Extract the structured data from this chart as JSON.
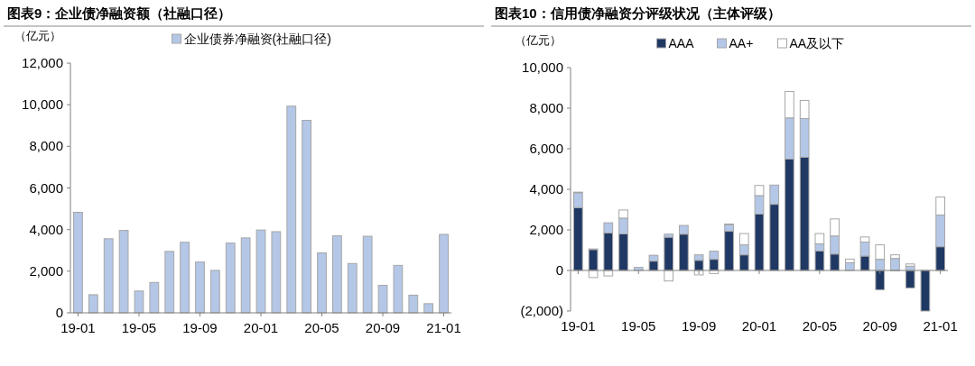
{
  "chart_data": [
    {
      "type": "bar",
      "title": "图表9：企业债净融资额（社融口径）",
      "ylabel": "（亿元）",
      "legend": "top",
      "categories": [
        "19-01",
        null,
        null,
        null,
        "19-05",
        null,
        null,
        null,
        "19-09",
        null,
        null,
        null,
        "20-01",
        null,
        null,
        null,
        "20-05",
        null,
        null,
        null,
        "20-09",
        null,
        null,
        null,
        "21-01"
      ],
      "series": [
        {
          "name": "企业债券净融资(社融口径)",
          "color": "#b4c7e7",
          "values": [
            4830,
            870,
            3560,
            3960,
            1050,
            1460,
            2950,
            3390,
            2440,
            2040,
            3350,
            3600,
            3980,
            3900,
            9930,
            9250,
            2880,
            3700,
            2370,
            3680,
            1320,
            2280,
            850,
            440,
            3770
          ]
        }
      ],
      "ylim": [
        0,
        12000
      ],
      "yticks": [
        0,
        {
          "value": 2000,
          "label": "2,000"
        },
        {
          "value": 4000,
          "label": "4,000"
        },
        {
          "value": 6000,
          "label": "6,000"
        },
        {
          "value": 8000,
          "label": "8,000"
        },
        {
          "value": 10000,
          "label": "10,000"
        },
        {
          "value": 12000,
          "label": "12,000"
        }
      ]
    },
    {
      "type": "bar",
      "title": "图表10：信用债净融资分评级状况（主体评级）",
      "ylabel": "（亿元）",
      "legend": "top",
      "stacked": true,
      "categories": [
        "19-01",
        null,
        null,
        null,
        "19-05",
        null,
        null,
        null,
        "19-09",
        null,
        null,
        null,
        "20-01",
        null,
        null,
        null,
        "20-05",
        null,
        null,
        null,
        "20-09",
        null,
        null,
        null,
        "21-01"
      ],
      "series": [
        {
          "name": "AAA",
          "color": "#1f3864",
          "values": [
            3100,
            1030,
            1850,
            1800,
            null,
            460,
            1640,
            1790,
            500,
            550,
            1930,
            770,
            2780,
            3260,
            5490,
            5580,
            960,
            810,
            null,
            710,
            -950,
            0,
            -860,
            -2000,
            1170
          ]
        },
        {
          "name": "AA+",
          "color": "#b4c7e7",
          "values": [
            730,
            30,
            500,
            780,
            150,
            290,
            150,
            430,
            270,
            400,
            320,
            490,
            910,
            950,
            2030,
            1910,
            350,
            890,
            380,
            690,
            550,
            590,
            210,
            null,
            1560
          ]
        },
        {
          "name": "AA及以下",
          "color": "#ffffff",
          "values": [
            30,
            -350,
            -270,
            400,
            null,
            null,
            -520,
            null,
            -220,
            -150,
            40,
            560,
            500,
            null,
            1300,
            890,
            510,
            840,
            180,
            250,
            710,
            180,
            110,
            null,
            890
          ]
        }
      ],
      "ylim": [
        -2000,
        10000
      ],
      "yticks": [
        {
          "value": -2000,
          "label": "(2,000)"
        },
        0,
        {
          "value": 2000,
          "label": "2,000"
        },
        {
          "value": 4000,
          "label": "4,000"
        },
        {
          "value": 6000,
          "label": "6,000"
        },
        {
          "value": 8000,
          "label": "8,000"
        },
        {
          "value": 10000,
          "label": "10,000"
        }
      ]
    }
  ]
}
